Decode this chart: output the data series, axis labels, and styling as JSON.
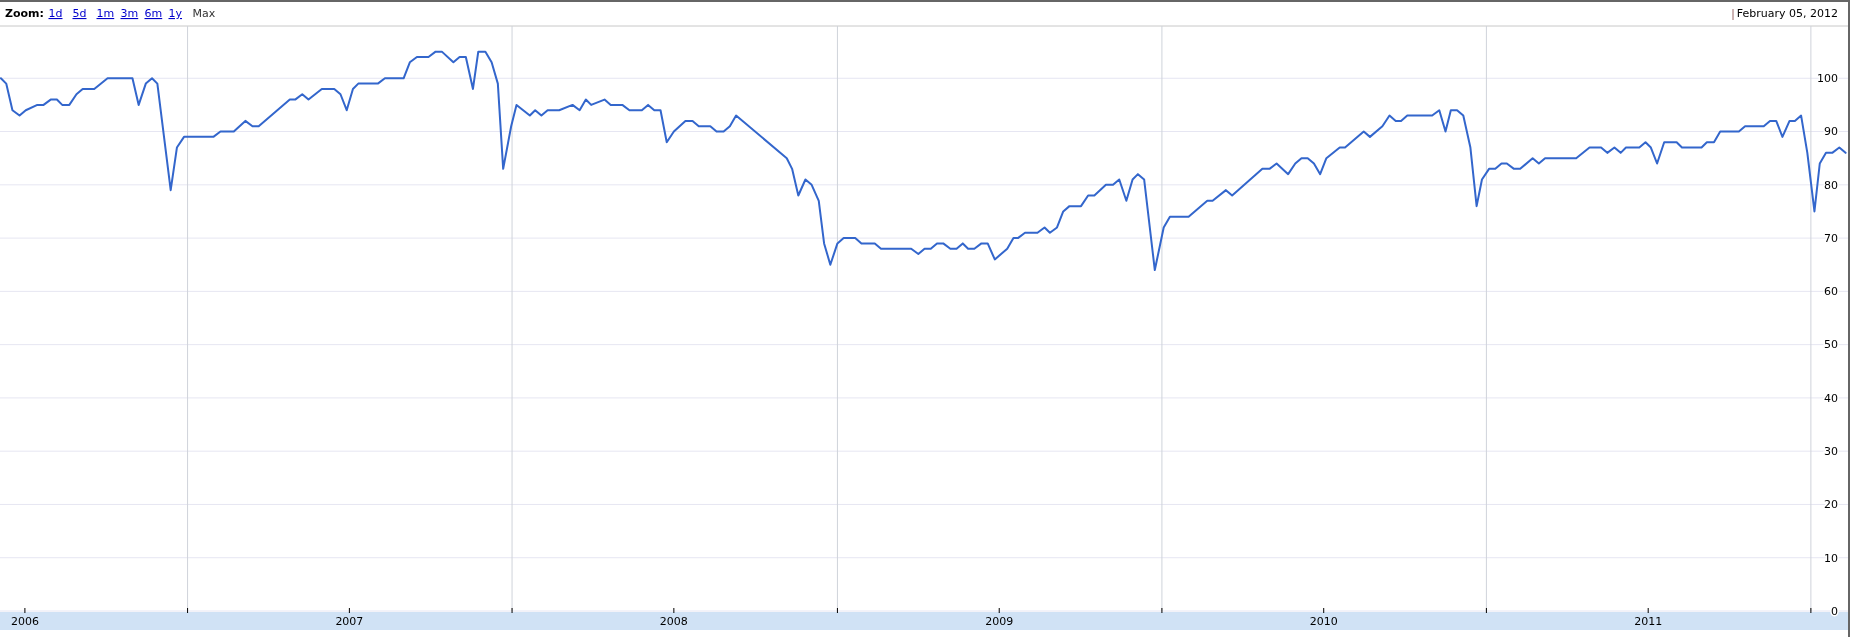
{
  "chart_data": {
    "type": "line",
    "subtitle": "February 05, 2012",
    "annotations": [
      "Zoom:",
      "1d",
      "5d",
      "1m",
      "3m",
      "6m",
      "1y",
      "Max"
    ],
    "xlim": [
      "2006-06-04",
      "2012-02-14"
    ],
    "xticks": [
      {
        "value": "2006-07-02",
        "label": "2006"
      },
      {
        "value": "2007-01-01",
        "label": null
      },
      {
        "value": "2007-07-02",
        "label": "2007"
      },
      {
        "value": "2008-01-01",
        "label": null
      },
      {
        "value": "2008-07-01",
        "label": "2008"
      },
      {
        "value": "2009-01-01",
        "label": null
      },
      {
        "value": "2009-07-02",
        "label": "2009"
      },
      {
        "value": "2010-01-01",
        "label": null
      },
      {
        "value": "2010-07-02",
        "label": "2010"
      },
      {
        "value": "2011-01-01",
        "label": null
      },
      {
        "value": "2011-07-02",
        "label": "2011"
      },
      {
        "value": "2012-01-01",
        "label": null
      }
    ],
    "ylim": [
      0,
      110
    ],
    "yticks": [
      0,
      10,
      20,
      30,
      40,
      50,
      60,
      70,
      80,
      90,
      100
    ],
    "grid": true,
    "line_style": "solid",
    "marker": "none",
    "series": [
      {
        "color": "#3366cc",
        "x": [
          "2006-06-05",
          "2006-06-11",
          "2006-06-18",
          "2006-06-26",
          "2006-07-03",
          "2006-07-16",
          "2006-07-23",
          "2006-07-31",
          "2006-08-07",
          "2006-08-13",
          "2006-08-21",
          "2006-08-29",
          "2006-09-05",
          "2006-09-18",
          "2006-10-03",
          "2006-10-31",
          "2006-11-07",
          "2006-11-15",
          "2006-11-22",
          "2006-11-28",
          "2006-12-13",
          "2006-12-20",
          "2006-12-28",
          "2007-01-30",
          "2007-02-07",
          "2007-02-22",
          "2007-03-07",
          "2007-03-15",
          "2007-03-22",
          "2007-04-26",
          "2007-05-02",
          "2007-05-10",
          "2007-05-17",
          "2007-06-01",
          "2007-06-15",
          "2007-06-22",
          "2007-06-29",
          "2007-07-06",
          "2007-07-12",
          "2007-08-03",
          "2007-08-11",
          "2007-09-01",
          "2007-09-08",
          "2007-09-16",
          "2007-09-29",
          "2007-10-07",
          "2007-10-14",
          "2007-10-27",
          "2007-11-03",
          "2007-11-10",
          "2007-11-18",
          "2007-11-24",
          "2007-12-02",
          "2007-12-09",
          "2007-12-16",
          "2007-12-22",
          "2007-12-31",
          "2008-01-06",
          "2008-01-21",
          "2008-01-27",
          "2008-02-03",
          "2008-02-10",
          "2008-02-23",
          "2008-03-09",
          "2008-03-17",
          "2008-03-24",
          "2008-03-30",
          "2008-04-14",
          "2008-04-21",
          "2008-05-04",
          "2008-05-12",
          "2008-05-26",
          "2008-06-02",
          "2008-06-09",
          "2008-06-16",
          "2008-06-23",
          "2008-07-01",
          "2008-07-14",
          "2008-07-22",
          "2008-07-29",
          "2008-08-11",
          "2008-08-18",
          "2008-08-26",
          "2008-09-02",
          "2008-09-09",
          "2008-11-05",
          "2008-11-11",
          "2008-11-18",
          "2008-11-26",
          "2008-12-03",
          "2008-12-11",
          "2008-12-17",
          "2008-12-24",
          "2009-01-01",
          "2009-01-08",
          "2009-01-21",
          "2009-01-28",
          "2009-02-12",
          "2009-02-19",
          "2009-03-25",
          "2009-04-02",
          "2009-04-09",
          "2009-04-16",
          "2009-04-23",
          "2009-04-30",
          "2009-05-08",
          "2009-05-15",
          "2009-05-22",
          "2009-05-28",
          "2009-06-04",
          "2009-06-12",
          "2009-06-19",
          "2009-06-27",
          "2009-07-11",
          "2009-07-18",
          "2009-07-23",
          "2009-07-31",
          "2009-08-14",
          "2009-08-22",
          "2009-08-28",
          "2009-09-05",
          "2009-09-12",
          "2009-09-19",
          "2009-10-02",
          "2009-10-10",
          "2009-10-17",
          "2009-10-30",
          "2009-11-07",
          "2009-11-14",
          "2009-11-22",
          "2009-11-29",
          "2009-12-05",
          "2009-12-12",
          "2009-12-24",
          "2010-01-03",
          "2010-01-10",
          "2010-01-31",
          "2010-02-21",
          "2010-02-27",
          "2010-03-14",
          "2010-03-21",
          "2010-04-24",
          "2010-05-02",
          "2010-05-10",
          "2010-05-23",
          "2010-05-31",
          "2010-06-07",
          "2010-06-14",
          "2010-06-21",
          "2010-06-28",
          "2010-07-05",
          "2010-07-20",
          "2010-07-26",
          "2010-08-16",
          "2010-08-23",
          "2010-09-06",
          "2010-09-14",
          "2010-09-21",
          "2010-09-27",
          "2010-10-04",
          "2010-11-01",
          "2010-11-09",
          "2010-11-16",
          "2010-11-22",
          "2010-11-29",
          "2010-12-06",
          "2010-12-14",
          "2010-12-21",
          "2010-12-27",
          "2011-01-04",
          "2011-01-11",
          "2011-01-18",
          "2011-01-24",
          "2011-02-01",
          "2011-02-08",
          "2011-02-22",
          "2011-03-01",
          "2011-03-08",
          "2011-04-12",
          "2011-04-27",
          "2011-05-10",
          "2011-05-17",
          "2011-05-25",
          "2011-06-01",
          "2011-06-07",
          "2011-06-22",
          "2011-06-29",
          "2011-07-05",
          "2011-07-12",
          "2011-07-20",
          "2011-08-03",
          "2011-08-09",
          "2011-08-31",
          "2011-09-06",
          "2011-09-14",
          "2011-09-21",
          "2011-10-12",
          "2011-10-19",
          "2011-11-09",
          "2011-11-16",
          "2011-11-23",
          "2011-11-30",
          "2011-12-08",
          "2011-12-14",
          "2011-12-21",
          "2011-12-28",
          "2012-01-05",
          "2012-01-11",
          "2012-01-18",
          "2012-01-25",
          "2012-02-02",
          "2012-02-09"
        ],
        "values": [
          100,
          99,
          94,
          93,
          94,
          95,
          95,
          96,
          96,
          95,
          95,
          97,
          98,
          98,
          100,
          100,
          95,
          99,
          100,
          99,
          79,
          87,
          89,
          89,
          90,
          90,
          92,
          91,
          91,
          96,
          96,
          97,
          96,
          98,
          98,
          97,
          94,
          98,
          99,
          99,
          100,
          100,
          103,
          104,
          104,
          105,
          105,
          103,
          104,
          104,
          98,
          105,
          105,
          103,
          99,
          83,
          91,
          95,
          93,
          94,
          93,
          94,
          94,
          95,
          94,
          96,
          95,
          96,
          95,
          95,
          94,
          94,
          95,
          94,
          94,
          88,
          90,
          92,
          92,
          91,
          91,
          90,
          90,
          91,
          93,
          85,
          83,
          78,
          81,
          80,
          77,
          69,
          65,
          69,
          70,
          70,
          69,
          69,
          68,
          68,
          67,
          68,
          68,
          69,
          69,
          68,
          68,
          69,
          68,
          68,
          69,
          69,
          66,
          68,
          70,
          70,
          71,
          71,
          72,
          71,
          72,
          75,
          76,
          76,
          78,
          78,
          80,
          80,
          81,
          77,
          81,
          82,
          81,
          64,
          72,
          74,
          74,
          77,
          77,
          79,
          78,
          83,
          83,
          84,
          82,
          84,
          85,
          85,
          84,
          82,
          85,
          87,
          87,
          90,
          89,
          91,
          93,
          92,
          92,
          93,
          93,
          94,
          90,
          94,
          94,
          93,
          87,
          76,
          81,
          83,
          83,
          84,
          84,
          83,
          83,
          85,
          84,
          85,
          85,
          87,
          87,
          86,
          87,
          86,
          87,
          87,
          88,
          87,
          84,
          88,
          88,
          87,
          87,
          88,
          88,
          90,
          90,
          91,
          91,
          92,
          92,
          89,
          92,
          92,
          93,
          86,
          75,
          84,
          86,
          86,
          87,
          86
        ]
      }
    ]
  }
}
